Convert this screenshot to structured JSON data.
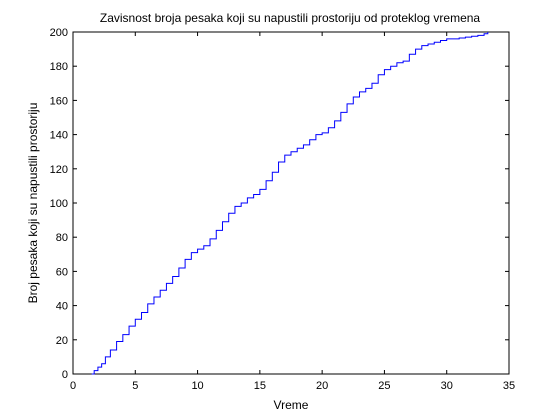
{
  "chart_data": {
    "type": "line",
    "title": "Zavisnost broja pesaka koji su napustili prostoriju od proteklog vremena",
    "xlabel": "Vreme",
    "ylabel": "Broj pesaka koji su napustili prostoriju",
    "xlim": [
      0,
      35
    ],
    "ylim": [
      0,
      200
    ],
    "xticks": [
      0,
      5,
      10,
      15,
      20,
      25,
      30,
      35
    ],
    "yticks": [
      0,
      20,
      40,
      60,
      80,
      100,
      120,
      140,
      160,
      180,
      200
    ],
    "grid": false,
    "series": [
      {
        "color": "#0000ff",
        "x": [
          1.5,
          1.7,
          2.0,
          2.3,
          2.6,
          3.0,
          3.5,
          4.0,
          4.5,
          5.0,
          5.5,
          6.0,
          6.5,
          7.0,
          7.5,
          8.0,
          8.5,
          9.0,
          9.5,
          10.0,
          10.5,
          11.0,
          11.5,
          12.0,
          12.5,
          13.0,
          13.5,
          14.0,
          14.5,
          15.0,
          15.5,
          16.0,
          16.5,
          17.0,
          17.5,
          18.0,
          18.5,
          19.0,
          19.5,
          20.0,
          20.5,
          21.0,
          21.5,
          22.0,
          22.5,
          23.0,
          23.5,
          24.0,
          24.5,
          25.0,
          25.5,
          26.0,
          26.5,
          27.0,
          27.5,
          28.0,
          28.5,
          29.0,
          29.5,
          30.0,
          30.5,
          31.0,
          31.5,
          32.0,
          32.5,
          33.0,
          33.3
        ],
        "y": [
          0,
          2,
          4,
          6,
          10,
          14,
          19,
          23,
          28,
          32,
          36,
          41,
          45,
          49,
          53,
          57,
          62,
          67,
          71,
          73,
          75,
          79,
          84,
          89,
          94,
          98,
          100,
          103,
          105,
          108,
          113,
          118,
          124,
          128,
          130,
          132,
          134,
          137,
          140,
          141,
          144,
          148,
          153,
          158,
          162,
          165,
          167,
          170,
          175,
          178,
          180,
          182,
          183,
          187,
          190,
          192,
          193,
          194,
          195,
          196,
          196,
          196.5,
          197,
          197.5,
          198,
          199,
          200
        ]
      }
    ]
  }
}
